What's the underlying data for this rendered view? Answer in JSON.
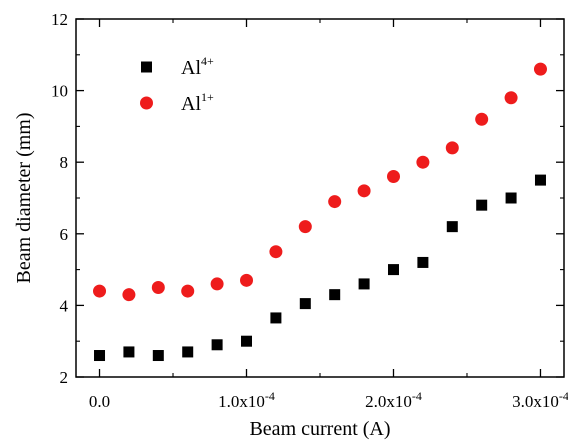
{
  "chart_data": {
    "type": "scatter",
    "xlabel": "Beam current (A)",
    "ylabel": "Beam diameter (mm)",
    "xlim": [
      -1.6e-05,
      0.000316
    ],
    "ylim": [
      2,
      12
    ],
    "x_ticks": [
      0,
      0.0001,
      0.0002,
      0.0003
    ],
    "x_tick_labels": [
      {
        "base": "0.0",
        "exp": ""
      },
      {
        "base": "1.0x10",
        "exp": "-4"
      },
      {
        "base": "2.0x10",
        "exp": "-4"
      },
      {
        "base": "3.0x10",
        "exp": "-4"
      }
    ],
    "y_ticks": [
      2,
      4,
      6,
      8,
      10,
      12
    ],
    "y_tick_labels": [
      "2",
      "4",
      "6",
      "8",
      "10",
      "12"
    ],
    "legend_position": "top-left",
    "grid": false,
    "series": [
      {
        "name_base": "Al",
        "name_sup": "4+",
        "marker": "square",
        "color": "#000000",
        "x": [
          0,
          2e-05,
          4e-05,
          6e-05,
          8e-05,
          0.0001,
          0.00012,
          0.00014,
          0.00016,
          0.00018,
          0.0002,
          0.00022,
          0.00024,
          0.00026,
          0.00028,
          0.0003
        ],
        "y": [
          2.6,
          2.7,
          2.6,
          2.7,
          2.9,
          3.0,
          3.65,
          4.05,
          4.3,
          4.6,
          5.0,
          5.2,
          6.2,
          6.8,
          7.0,
          7.5
        ]
      },
      {
        "name_base": "Al",
        "name_sup": "1+",
        "marker": "circle",
        "color": "#ee1c1c",
        "x": [
          0,
          2e-05,
          4e-05,
          6e-05,
          8e-05,
          0.0001,
          0.00012,
          0.00014,
          0.00016,
          0.00018,
          0.0002,
          0.00022,
          0.00024,
          0.00026,
          0.00028,
          0.0003
        ],
        "y": [
          4.4,
          4.3,
          4.5,
          4.4,
          4.6,
          4.7,
          5.5,
          6.2,
          6.9,
          7.2,
          7.6,
          8.0,
          8.4,
          9.2,
          9.8,
          10.6
        ]
      }
    ]
  }
}
